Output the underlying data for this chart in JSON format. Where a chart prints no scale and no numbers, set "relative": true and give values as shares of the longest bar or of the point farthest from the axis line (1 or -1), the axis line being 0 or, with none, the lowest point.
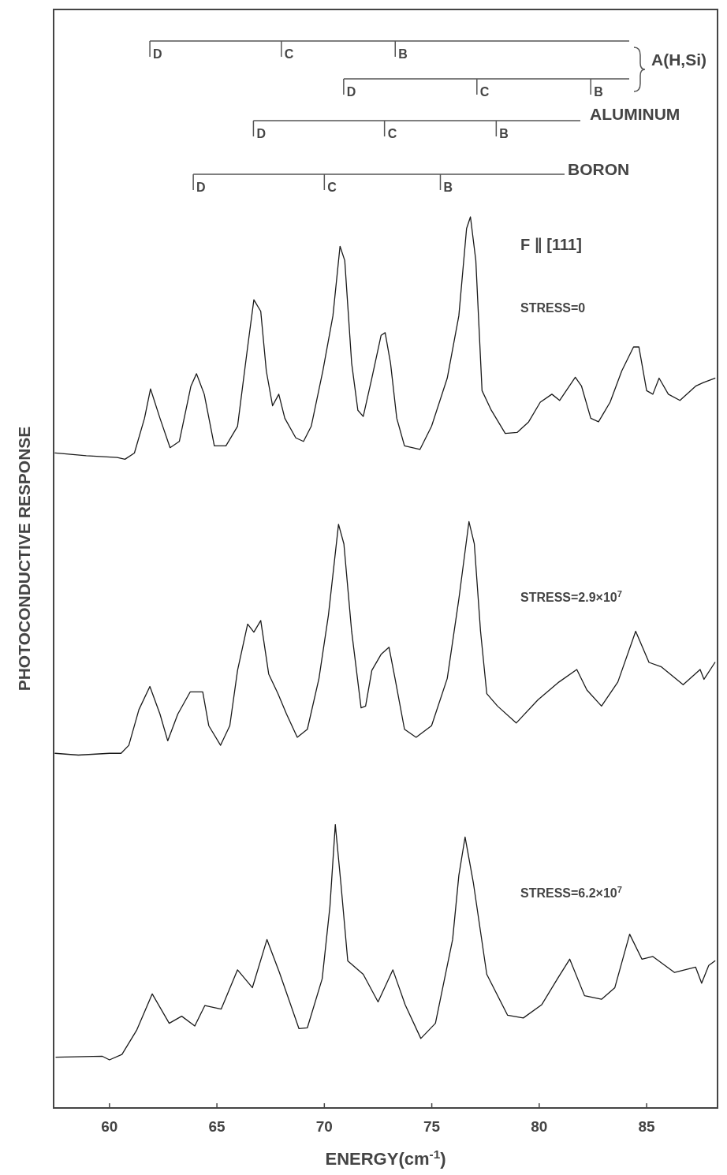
{
  "chart_data": {
    "type": "line",
    "relative": true,
    "xlabel": "ENERGY(cm$^{-1}$)",
    "ylabel": "PHOTOCONDUCTIVE RESPONSE",
    "xlim": [
      57.4,
      88.3
    ],
    "xticks": [
      60,
      65,
      70,
      75,
      80,
      85
    ],
    "series": [
      {
        "color": "#1a1a1a",
        "x": [
          57.47,
          58.92,
          60.36,
          60.72,
          61.16,
          61.63,
          61.91,
          62.35,
          62.82,
          63.25,
          63.79,
          64.05,
          64.41,
          64.88,
          65.42,
          65.96,
          66.43,
          66.72,
          67.04,
          67.3,
          67.59,
          67.88,
          68.16,
          68.67,
          69.03,
          69.39,
          69.93,
          70.4,
          70.73,
          70.95,
          71.27,
          71.56,
          71.81,
          72.21,
          72.64,
          72.83,
          73.08,
          73.37,
          73.73,
          74.45,
          74.99,
          75.72,
          76.26,
          76.62,
          76.8,
          77.05,
          77.34,
          77.77,
          78.42,
          78.97,
          79.51,
          80.05,
          80.59,
          80.95,
          81.68,
          81.97,
          82.4,
          82.76,
          83.3,
          83.84,
          84.39,
          84.64,
          85.0,
          85.29,
          85.58,
          86.01,
          86.55,
          87.28,
          87.64,
          88.18
        ],
        "values": [
          0.735,
          0.732,
          0.73,
          0.728,
          0.735,
          0.774,
          0.807,
          0.774,
          0.741,
          0.748,
          0.81,
          0.824,
          0.801,
          0.743,
          0.743,
          0.765,
          0.854,
          0.907,
          0.894,
          0.827,
          0.788,
          0.801,
          0.774,
          0.752,
          0.748,
          0.765,
          0.827,
          0.889,
          0.967,
          0.951,
          0.836,
          0.783,
          0.776,
          0.819,
          0.867,
          0.87,
          0.836,
          0.774,
          0.743,
          0.739,
          0.765,
          0.819,
          0.889,
          0.987,
          1.0,
          0.951,
          0.805,
          0.783,
          0.757,
          0.758,
          0.77,
          0.792,
          0.801,
          0.794,
          0.82,
          0.81,
          0.774,
          0.77,
          0.792,
          0.827,
          0.854,
          0.854,
          0.805,
          0.801,
          0.819,
          0.801,
          0.794,
          0.81,
          0.814,
          0.819
        ]
      },
      {
        "color": "#1a1a1a",
        "x": [
          57.47,
          58.55,
          60.0,
          60.54,
          60.9,
          61.37,
          61.88,
          62.35,
          62.71,
          63.18,
          63.76,
          64.34,
          64.62,
          65.17,
          65.6,
          65.96,
          66.43,
          66.72,
          67.04,
          67.41,
          67.84,
          68.24,
          68.74,
          69.21,
          69.75,
          70.19,
          70.66,
          70.91,
          71.27,
          71.71,
          71.92,
          72.21,
          72.64,
          73.01,
          73.29,
          73.73,
          74.27,
          74.99,
          75.72,
          76.26,
          76.73,
          76.98,
          77.27,
          77.56,
          78.06,
          78.93,
          79.94,
          80.92,
          81.75,
          82.22,
          82.9,
          83.66,
          84.49,
          85.11,
          85.69,
          86.7,
          87.49,
          87.67,
          88.18
        ],
        "values": [
          0.398,
          0.396,
          0.398,
          0.398,
          0.407,
          0.447,
          0.473,
          0.442,
          0.412,
          0.442,
          0.467,
          0.467,
          0.429,
          0.407,
          0.429,
          0.491,
          0.543,
          0.534,
          0.547,
          0.487,
          0.465,
          0.442,
          0.416,
          0.425,
          0.482,
          0.553,
          0.655,
          0.633,
          0.535,
          0.449,
          0.451,
          0.491,
          0.509,
          0.517,
          0.482,
          0.425,
          0.416,
          0.429,
          0.482,
          0.571,
          0.658,
          0.633,
          0.535,
          0.465,
          0.451,
          0.432,
          0.458,
          0.478,
          0.492,
          0.469,
          0.451,
          0.478,
          0.535,
          0.5,
          0.495,
          0.475,
          0.492,
          0.481,
          0.5
        ]
      },
      {
        "color": "#1a1a1a",
        "x": [
          57.51,
          59.67,
          60.0,
          60.58,
          61.26,
          61.99,
          62.78,
          63.36,
          63.97,
          64.44,
          65.2,
          65.96,
          66.65,
          67.33,
          67.91,
          68.82,
          69.21,
          69.9,
          70.26,
          70.51,
          70.77,
          71.09,
          71.81,
          72.5,
          73.19,
          73.76,
          74.49,
          75.17,
          75.97,
          76.26,
          76.55,
          76.94,
          77.56,
          78.53,
          79.26,
          80.12,
          80.85,
          81.42,
          82.11,
          82.9,
          83.52,
          84.21,
          84.78,
          85.29,
          86.3,
          87.28,
          87.56,
          87.89,
          88.18
        ],
        "values": [
          0.057,
          0.058,
          0.054,
          0.06,
          0.087,
          0.128,
          0.095,
          0.103,
          0.092,
          0.115,
          0.111,
          0.155,
          0.135,
          0.189,
          0.152,
          0.089,
          0.09,
          0.145,
          0.226,
          0.318,
          0.252,
          0.165,
          0.15,
          0.119,
          0.155,
          0.116,
          0.078,
          0.095,
          0.189,
          0.261,
          0.304,
          0.252,
          0.15,
          0.104,
          0.101,
          0.116,
          0.145,
          0.167,
          0.126,
          0.122,
          0.135,
          0.195,
          0.167,
          0.17,
          0.152,
          0.158,
          0.14,
          0.16,
          0.165
        ]
      }
    ],
    "ref_lines": [
      {
        "axis": "x",
        "value": 61.88,
        "label": "D"
      },
      {
        "axis": "x",
        "value": 68.0,
        "label": "C"
      },
      {
        "axis": "x",
        "value": 73.3,
        "label": "B"
      },
      {
        "axis": "x",
        "value": 70.9,
        "label": "D"
      },
      {
        "axis": "x",
        "value": 77.1,
        "label": "C"
      },
      {
        "axis": "x",
        "value": 82.4,
        "label": "B"
      },
      {
        "axis": "x",
        "value": 66.7,
        "label": "D"
      },
      {
        "axis": "x",
        "value": 72.8,
        "label": "C"
      },
      {
        "axis": "x",
        "value": 78.0,
        "label": "B"
      },
      {
        "axis": "x",
        "value": 63.9,
        "label": "D"
      },
      {
        "axis": "x",
        "value": 70.0,
        "label": "C"
      },
      {
        "axis": "x",
        "value": 75.4,
        "label": "B"
      }
    ],
    "annotations": [
      "A(H,Si)",
      "ALUMINUM",
      "BORON",
      "F ∥ [111]",
      "STRESS=0",
      "STRESS=2.9×10$^{7}$",
      "STRESS=6.2×10$^{7}$"
    ]
  }
}
